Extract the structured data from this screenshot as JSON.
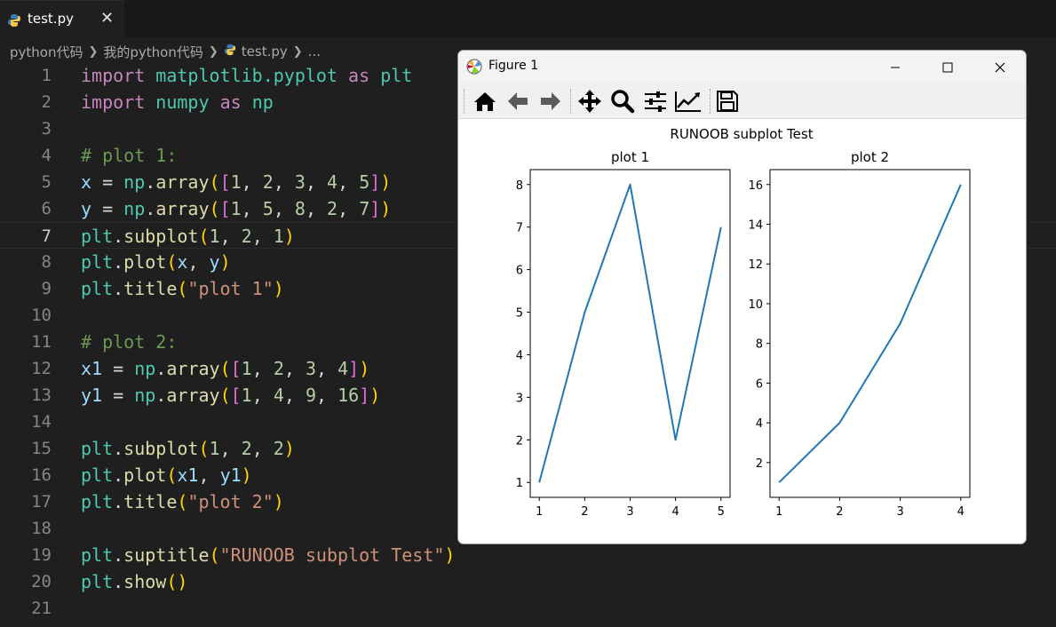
{
  "tab": {
    "label": "test.py",
    "close": "✕"
  },
  "breadcrumb": {
    "items": [
      "python代码",
      "我的python代码",
      "test.py",
      "..."
    ]
  },
  "editor": {
    "current_line": 7,
    "lines": [
      {
        "n": "1"
      },
      {
        "n": "2"
      },
      {
        "n": "3"
      },
      {
        "n": "4"
      },
      {
        "n": "5"
      },
      {
        "n": "6"
      },
      {
        "n": "7"
      },
      {
        "n": "8"
      },
      {
        "n": "9"
      },
      {
        "n": "10"
      },
      {
        "n": "11"
      },
      {
        "n": "12"
      },
      {
        "n": "13"
      },
      {
        "n": "14"
      },
      {
        "n": "15"
      },
      {
        "n": "16"
      },
      {
        "n": "17"
      },
      {
        "n": "18"
      },
      {
        "n": "19"
      },
      {
        "n": "20"
      },
      {
        "n": "21"
      }
    ],
    "code": [
      [
        [
          "kw",
          "import"
        ],
        [
          "op",
          " "
        ],
        [
          "mod",
          "matplotlib.pyplot"
        ],
        [
          "op",
          " "
        ],
        [
          "kw",
          "as"
        ],
        [
          "op",
          " "
        ],
        [
          "mod",
          "plt"
        ]
      ],
      [
        [
          "kw",
          "import"
        ],
        [
          "op",
          " "
        ],
        [
          "mod",
          "numpy"
        ],
        [
          "op",
          " "
        ],
        [
          "kw",
          "as"
        ],
        [
          "op",
          " "
        ],
        [
          "mod",
          "np"
        ]
      ],
      [],
      [
        [
          "cm",
          "# plot 1:"
        ]
      ],
      [
        [
          "var",
          "x"
        ],
        [
          "op",
          " = "
        ],
        [
          "mod",
          "np"
        ],
        [
          "op",
          "."
        ],
        [
          "fn",
          "array"
        ],
        [
          "b1",
          "("
        ],
        [
          "b2",
          "["
        ],
        [
          "num",
          "1"
        ],
        [
          "op",
          ", "
        ],
        [
          "num",
          "2"
        ],
        [
          "op",
          ", "
        ],
        [
          "num",
          "3"
        ],
        [
          "op",
          ", "
        ],
        [
          "num",
          "4"
        ],
        [
          "op",
          ", "
        ],
        [
          "num",
          "5"
        ],
        [
          "b2",
          "]"
        ],
        [
          "b1",
          ")"
        ]
      ],
      [
        [
          "var",
          "y"
        ],
        [
          "op",
          " = "
        ],
        [
          "mod",
          "np"
        ],
        [
          "op",
          "."
        ],
        [
          "fn",
          "array"
        ],
        [
          "b1",
          "("
        ],
        [
          "b2",
          "["
        ],
        [
          "num",
          "1"
        ],
        [
          "op",
          ", "
        ],
        [
          "num",
          "5"
        ],
        [
          "op",
          ", "
        ],
        [
          "num",
          "8"
        ],
        [
          "op",
          ", "
        ],
        [
          "num",
          "2"
        ],
        [
          "op",
          ", "
        ],
        [
          "num",
          "7"
        ],
        [
          "b2",
          "]"
        ],
        [
          "b1",
          ")"
        ]
      ],
      [
        [
          "mod",
          "plt"
        ],
        [
          "op",
          "."
        ],
        [
          "fn",
          "subplot"
        ],
        [
          "b1",
          "("
        ],
        [
          "num",
          "1"
        ],
        [
          "op",
          ", "
        ],
        [
          "num",
          "2"
        ],
        [
          "op",
          ", "
        ],
        [
          "num",
          "1"
        ],
        [
          "b1",
          ")"
        ]
      ],
      [
        [
          "mod",
          "plt"
        ],
        [
          "op",
          "."
        ],
        [
          "fn",
          "plot"
        ],
        [
          "b1",
          "("
        ],
        [
          "var",
          "x"
        ],
        [
          "op",
          ", "
        ],
        [
          "var",
          "y"
        ],
        [
          "b1",
          ")"
        ]
      ],
      [
        [
          "mod",
          "plt"
        ],
        [
          "op",
          "."
        ],
        [
          "fn",
          "title"
        ],
        [
          "b1",
          "("
        ],
        [
          "str",
          "\"plot 1\""
        ],
        [
          "b1",
          ")"
        ]
      ],
      [],
      [
        [
          "cm",
          "# plot 2:"
        ]
      ],
      [
        [
          "var",
          "x1"
        ],
        [
          "op",
          " = "
        ],
        [
          "mod",
          "np"
        ],
        [
          "op",
          "."
        ],
        [
          "fn",
          "array"
        ],
        [
          "b1",
          "("
        ],
        [
          "b2",
          "["
        ],
        [
          "num",
          "1"
        ],
        [
          "op",
          ", "
        ],
        [
          "num",
          "2"
        ],
        [
          "op",
          ", "
        ],
        [
          "num",
          "3"
        ],
        [
          "op",
          ", "
        ],
        [
          "num",
          "4"
        ],
        [
          "b2",
          "]"
        ],
        [
          "b1",
          ")"
        ]
      ],
      [
        [
          "var",
          "y1"
        ],
        [
          "op",
          " = "
        ],
        [
          "mod",
          "np"
        ],
        [
          "op",
          "."
        ],
        [
          "fn",
          "array"
        ],
        [
          "b1",
          "("
        ],
        [
          "b2",
          "["
        ],
        [
          "num",
          "1"
        ],
        [
          "op",
          ", "
        ],
        [
          "num",
          "4"
        ],
        [
          "op",
          ", "
        ],
        [
          "num",
          "9"
        ],
        [
          "op",
          ", "
        ],
        [
          "num",
          "16"
        ],
        [
          "b2",
          "]"
        ],
        [
          "b1",
          ")"
        ]
      ],
      [],
      [
        [
          "mod",
          "plt"
        ],
        [
          "op",
          "."
        ],
        [
          "fn",
          "subplot"
        ],
        [
          "b1",
          "("
        ],
        [
          "num",
          "1"
        ],
        [
          "op",
          ", "
        ],
        [
          "num",
          "2"
        ],
        [
          "op",
          ", "
        ],
        [
          "num",
          "2"
        ],
        [
          "b1",
          ")"
        ]
      ],
      [
        [
          "mod",
          "plt"
        ],
        [
          "op",
          "."
        ],
        [
          "fn",
          "plot"
        ],
        [
          "b1",
          "("
        ],
        [
          "var",
          "x1"
        ],
        [
          "op",
          ", "
        ],
        [
          "var",
          "y1"
        ],
        [
          "b1",
          ")"
        ]
      ],
      [
        [
          "mod",
          "plt"
        ],
        [
          "op",
          "."
        ],
        [
          "fn",
          "title"
        ],
        [
          "b1",
          "("
        ],
        [
          "str",
          "\"plot 2\""
        ],
        [
          "b1",
          ")"
        ]
      ],
      [],
      [
        [
          "mod",
          "plt"
        ],
        [
          "op",
          "."
        ],
        [
          "fn",
          "suptitle"
        ],
        [
          "b1",
          "("
        ],
        [
          "str",
          "\"RUNOOB subplot Test\""
        ],
        [
          "b1",
          ")"
        ]
      ],
      [
        [
          "mod",
          "plt"
        ],
        [
          "op",
          "."
        ],
        [
          "fn",
          "show"
        ],
        [
          "b1",
          "()"
        ]
      ],
      []
    ]
  },
  "figure_window": {
    "title": "Figure 1",
    "controls": {
      "minimize": "minimize-icon",
      "maximize": "maximize-icon",
      "close": "close-icon"
    },
    "toolbar": [
      "home-icon",
      "back-arrow-icon",
      "forward-arrow-icon",
      "pan-move-icon",
      "zoom-magnifier-icon",
      "subplots-config-icon",
      "edit-axis-icon",
      "save-floppy-icon"
    ]
  },
  "figure": {
    "suptitle": "RUNOOB subplot Test",
    "line_color": "#1f77b4"
  },
  "chart_data": [
    {
      "type": "line",
      "title": "plot 1",
      "x": [
        1,
        2,
        3,
        4,
        5
      ],
      "series": [
        {
          "values": [
            1,
            5,
            8,
            2,
            7
          ]
        }
      ],
      "xticks": [
        1,
        2,
        3,
        4,
        5
      ],
      "yticks": [
        1,
        2,
        3,
        4,
        5,
        6,
        7,
        8
      ],
      "xlim": [
        0.8,
        5.2
      ],
      "ylim": [
        0.65,
        8.35
      ],
      "xlabel": "",
      "ylabel": "",
      "grid": false
    },
    {
      "type": "line",
      "title": "plot 2",
      "x": [
        1,
        2,
        3,
        4
      ],
      "series": [
        {
          "values": [
            1,
            4,
            9,
            16
          ]
        }
      ],
      "xticks": [
        1,
        2,
        3,
        4
      ],
      "yticks": [
        2,
        4,
        6,
        8,
        10,
        12,
        14,
        16
      ],
      "xlim": [
        0.85,
        4.15
      ],
      "ylim": [
        0.25,
        16.75
      ],
      "xlabel": "",
      "ylabel": "",
      "grid": false
    }
  ]
}
